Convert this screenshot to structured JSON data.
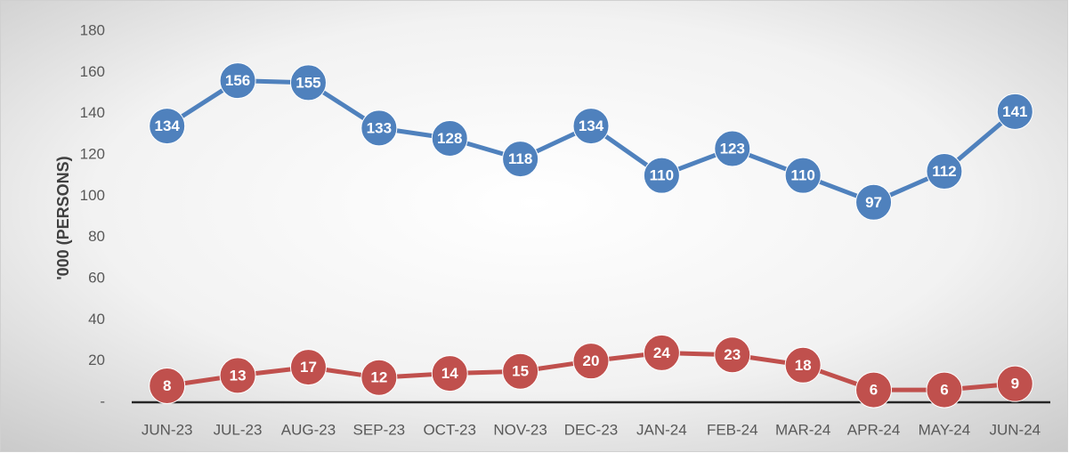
{
  "chart_data": {
    "type": "line",
    "y_label": "'000 (PERSONS)",
    "categories": [
      "JUN-23",
      "JUL-23",
      "AUG-23",
      "SEP-23",
      "OCT-23",
      "NOV-23",
      "DEC-23",
      "JAN-24",
      "FEB-24",
      "MAR-24",
      "APR-24",
      "MAY-24",
      "JUN-24"
    ],
    "series": [
      {
        "color": "#4f81bd",
        "values": [
          134,
          156,
          155,
          133,
          128,
          118,
          134,
          110,
          123,
          110,
          97,
          112,
          141
        ]
      },
      {
        "color": "#c0504d",
        "values": [
          8,
          13,
          17,
          12,
          14,
          15,
          20,
          24,
          23,
          18,
          6,
          6,
          9
        ]
      }
    ],
    "ylim": [
      0,
      180
    ],
    "yticks": [
      {
        "value": 0,
        "label": "-"
      },
      20,
      40,
      60,
      80,
      100,
      120,
      140,
      160,
      180
    ],
    "grid": false
  }
}
